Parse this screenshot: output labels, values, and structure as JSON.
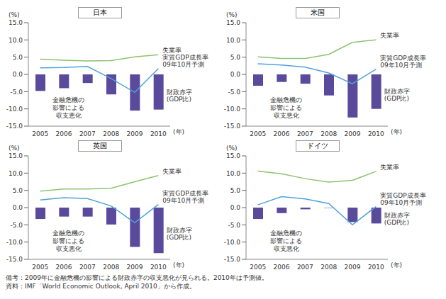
{
  "chart_data": [
    {
      "type": "bar",
      "title": "日本",
      "ylabel": "(%)",
      "xlabel": "(年)",
      "categories": [
        "2005",
        "2006",
        "2007",
        "2008",
        "2009",
        "2010"
      ],
      "ylim": [
        -15,
        15
      ],
      "yticks": [
        {
          "value": -15,
          "label": "-15.0"
        },
        {
          "value": -10,
          "label": "-10.0"
        },
        {
          "value": -5,
          "label": "-5.0"
        },
        {
          "value": 0,
          "label": "0.0"
        },
        {
          "value": 5,
          "label": "5.0"
        },
        {
          "value": 10,
          "label": "10.0"
        },
        {
          "value": 15,
          "label": "15.0"
        }
      ],
      "grid": false,
      "annotations": [
        "金融危機の影響による収支悪化"
      ],
      "series": [
        {
          "name": "財政赤字(GDP比)",
          "type": "bar",
          "color": "#5a4a9c",
          "values": [
            -4.8,
            -4.0,
            -2.5,
            -5.8,
            -10.5,
            -10.2
          ]
        },
        {
          "name": "失業率",
          "type": "line",
          "color": "#8dc26f",
          "values": [
            4.4,
            4.1,
            3.9,
            4.0,
            5.1,
            5.7
          ]
        },
        {
          "name": "実質GDP成長率 09年10月予測",
          "type": "line",
          "color": "#4fa3d9",
          "values": [
            1.9,
            2.0,
            2.3,
            -1.2,
            -5.2,
            1.7
          ]
        }
      ]
    },
    {
      "type": "bar",
      "title": "米国",
      "ylabel": "(%)",
      "xlabel": "(年)",
      "categories": [
        "2005",
        "2006",
        "2007",
        "2008",
        "2009",
        "2010"
      ],
      "ylim": [
        -15,
        15
      ],
      "yticks": [
        {
          "value": -15,
          "label": "-15.0"
        },
        {
          "value": -10,
          "label": "-10.0"
        },
        {
          "value": -5,
          "label": "-5.0"
        },
        {
          "value": 0,
          "label": "0.0"
        },
        {
          "value": 5,
          "label": "5.0"
        },
        {
          "value": 10,
          "label": "10.0"
        },
        {
          "value": 15,
          "label": "15.0"
        }
      ],
      "grid": false,
      "annotations": [
        "金融危機の影響による収支悪化"
      ],
      "series": [
        {
          "name": "財政赤字(GDP比)",
          "type": "bar",
          "color": "#5a4a9c",
          "values": [
            -3.3,
            -2.2,
            -2.7,
            -6.1,
            -12.5,
            -10.0
          ]
        },
        {
          "name": "失業率",
          "type": "line",
          "color": "#8dc26f",
          "values": [
            5.1,
            4.6,
            4.6,
            5.8,
            9.3,
            10.0
          ]
        },
        {
          "name": "実質GDP成長率 09年10月予測",
          "type": "line",
          "color": "#4fa3d9",
          "values": [
            3.1,
            2.7,
            2.1,
            0.4,
            -2.7,
            1.5
          ]
        }
      ]
    },
    {
      "type": "bar",
      "title": "英国",
      "ylabel": "(%)",
      "xlabel": "(年)",
      "categories": [
        "2005",
        "2006",
        "2007",
        "2008",
        "2009",
        "2010"
      ],
      "ylim": [
        -15,
        15
      ],
      "yticks": [
        {
          "value": -15,
          "label": "-15.0"
        },
        {
          "value": -10,
          "label": "-10.0"
        },
        {
          "value": -5,
          "label": "-5.0"
        },
        {
          "value": 0,
          "label": "0.0"
        },
        {
          "value": 5,
          "label": "5.0"
        },
        {
          "value": 10,
          "label": "10.0"
        },
        {
          "value": 15,
          "label": "15.0"
        }
      ],
      "grid": false,
      "annotations": [
        "金融危機の影響による収支悪化"
      ],
      "series": [
        {
          "name": "財政赤字(GDP比)",
          "type": "bar",
          "color": "#5a4a9c",
          "values": [
            -3.3,
            -2.6,
            -2.6,
            -4.9,
            -11.4,
            -13.2
          ]
        },
        {
          "name": "失業率",
          "type": "line",
          "color": "#8dc26f",
          "values": [
            4.8,
            5.4,
            5.4,
            5.6,
            7.5,
            9.3
          ]
        },
        {
          "name": "実質GDP成長率 09年10月予測",
          "type": "line",
          "color": "#4fa3d9",
          "values": [
            2.2,
            2.9,
            2.6,
            0.5,
            -4.4,
            0.9
          ]
        }
      ]
    },
    {
      "type": "bar",
      "title": "ドイツ",
      "ylabel": "(%)",
      "xlabel": "(年)",
      "categories": [
        "2005",
        "2006",
        "2007",
        "2008",
        "2009",
        "2010"
      ],
      "ylim": [
        -15,
        15
      ],
      "yticks": [
        {
          "value": -15,
          "label": "-15.0"
        },
        {
          "value": -10,
          "label": "-10.0"
        },
        {
          "value": -5,
          "label": "-5.0"
        },
        {
          "value": 0,
          "label": "0.0"
        },
        {
          "value": 5,
          "label": "5.0"
        },
        {
          "value": 10,
          "label": "10.0"
        },
        {
          "value": 15,
          "label": "15.0"
        }
      ],
      "grid": false,
      "annotations": [
        "金融危機の影響による収支悪化"
      ],
      "series": [
        {
          "name": "財政赤字(GDP比)",
          "type": "bar",
          "color": "#5a4a9c",
          "values": [
            -3.3,
            -1.6,
            -0.5,
            -0.1,
            -4.2,
            -4.6
          ]
        },
        {
          "name": "失業率",
          "type": "line",
          "color": "#8dc26f",
          "values": [
            10.6,
            9.8,
            8.4,
            7.4,
            7.9,
            10.5
          ]
        },
        {
          "name": "実質GDP成長率 09年10月予測",
          "type": "line",
          "color": "#4fa3d9",
          "values": [
            0.8,
            3.2,
            2.5,
            1.2,
            -5.0,
            0.3
          ]
        }
      ]
    }
  ],
  "notes": [
    "備考：2009年に金融危機の影響による財政赤字の収支悪化が見られる。2010年は予測値。",
    "資料：IMF「World Economic Outlook, April 2010」から作成。"
  ]
}
